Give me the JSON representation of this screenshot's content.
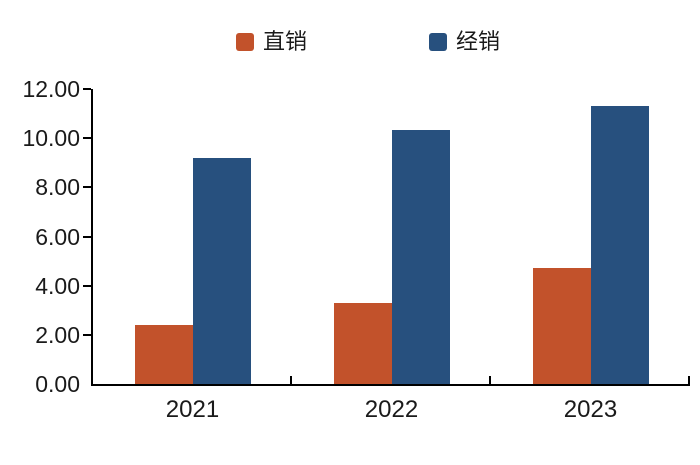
{
  "legend": {
    "items": [
      {
        "key": "direct-sales",
        "label": "直销",
        "color": "#C2522B"
      },
      {
        "key": "distribution",
        "label": "经销",
        "color": "#27507E"
      }
    ]
  },
  "chart_data": {
    "type": "bar",
    "title": "",
    "xlabel": "",
    "ylabel": "",
    "categories": [
      "2021",
      "2022",
      "2023"
    ],
    "series": [
      {
        "key": "direct-sales",
        "name": "直销",
        "color": "#C2522B",
        "values": [
          2.4,
          3.3,
          4.7
        ]
      },
      {
        "key": "distribution",
        "name": "经销",
        "color": "#27507E",
        "values": [
          9.2,
          10.35,
          11.3
        ]
      }
    ],
    "ylim": [
      0,
      12
    ],
    "ytick_step": 2,
    "ytick_labels": [
      "0.00",
      "2.00",
      "4.00",
      "6.00",
      "8.00",
      "10.00",
      "12.00"
    ],
    "grid": false,
    "legend_position": "top",
    "axis_color": "#000000",
    "text_color": "#1a1a1a",
    "background_color": "#ffffff"
  }
}
